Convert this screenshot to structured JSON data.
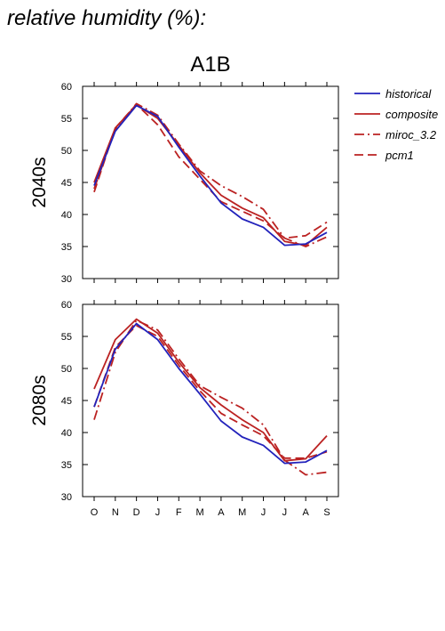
{
  "title": "relative humidity (%):",
  "colors": {
    "historical": "#2222bb",
    "models": "#bb2222"
  },
  "chart_data": {
    "type": "line",
    "scenario": "A1B",
    "categories": [
      "O",
      "N",
      "D",
      "J",
      "F",
      "M",
      "A",
      "M",
      "J",
      "J",
      "A",
      "S"
    ],
    "ylim": [
      30,
      60
    ],
    "yticks": [
      30,
      35,
      40,
      45,
      50,
      55,
      60
    ],
    "grid": false,
    "legend_position": "right",
    "legend": [
      {
        "name": "historical",
        "style": "solid",
        "color": "#2222bb"
      },
      {
        "name": "composite",
        "style": "solid",
        "color": "#bb2222"
      },
      {
        "name": "miroc_3.2",
        "style": "dashdot",
        "color": "#bb2222"
      },
      {
        "name": "pcm1",
        "style": "dashed",
        "color": "#bb2222"
      }
    ],
    "panels": [
      {
        "label": "2040s",
        "series": [
          {
            "name": "historical",
            "values": [
              44.5,
              53.0,
              57.0,
              55.3,
              50.5,
              46.0,
              41.8,
              39.3,
              38.0,
              35.2,
              35.4,
              37.2
            ]
          },
          {
            "name": "composite",
            "values": [
              45.0,
              53.5,
              57.1,
              55.0,
              50.8,
              46.5,
              43.0,
              41.0,
              39.5,
              35.8,
              35.2,
              38.0
            ]
          },
          {
            "name": "miroc_3.2",
            "values": [
              44.0,
              53.3,
              57.3,
              55.5,
              51.0,
              46.8,
              44.5,
              42.8,
              40.8,
              36.3,
              35.0,
              36.5
            ]
          },
          {
            "name": "pcm1",
            "values": [
              43.5,
              53.5,
              57.2,
              54.0,
              49.0,
              45.5,
              42.0,
              40.5,
              39.0,
              36.3,
              36.7,
              38.8
            ]
          }
        ]
      },
      {
        "label": "2080s",
        "series": [
          {
            "name": "historical",
            "values": [
              44.0,
              53.0,
              57.0,
              54.5,
              50.0,
              46.0,
              41.8,
              39.3,
              38.0,
              35.2,
              35.4,
              37.2
            ]
          },
          {
            "name": "composite",
            "values": [
              46.8,
              54.5,
              57.7,
              55.5,
              51.0,
              47.0,
              44.3,
              42.0,
              40.0,
              35.6,
              35.9,
              39.5
            ]
          },
          {
            "name": "miroc_3.2",
            "values": [
              42.0,
              52.5,
              57.5,
              56.0,
              51.5,
              47.3,
              45.5,
              43.8,
              41.2,
              35.7,
              33.4,
              33.8
            ]
          },
          {
            "name": "pcm1",
            "values": [
              44.0,
              53.3,
              56.7,
              55.0,
              50.5,
              46.5,
              43.0,
              41.2,
              39.5,
              36.0,
              36.0,
              37.0
            ]
          }
        ]
      }
    ]
  }
}
